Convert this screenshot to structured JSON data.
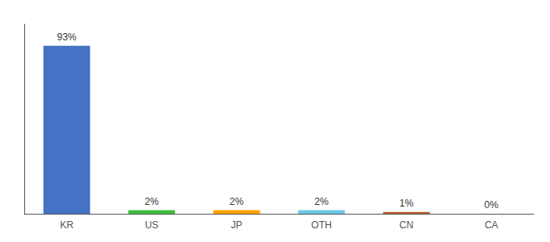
{
  "chart_data": {
    "type": "bar",
    "categories": [
      "KR",
      "US",
      "JP",
      "OTH",
      "CN",
      "CA"
    ],
    "values": [
      93,
      2,
      2,
      2,
      1,
      0
    ],
    "value_labels": [
      "93%",
      "2%",
      "2%",
      "2%",
      "1%",
      "0%"
    ],
    "colors": [
      "#4472C4",
      "#3DBE3D",
      "#FFA500",
      "#6EC6E6",
      "#B85C2A",
      "#BBBBBB"
    ],
    "ylim": [
      0,
      105
    ],
    "data_labels": true,
    "tick_labels": "x",
    "grid": false
  }
}
